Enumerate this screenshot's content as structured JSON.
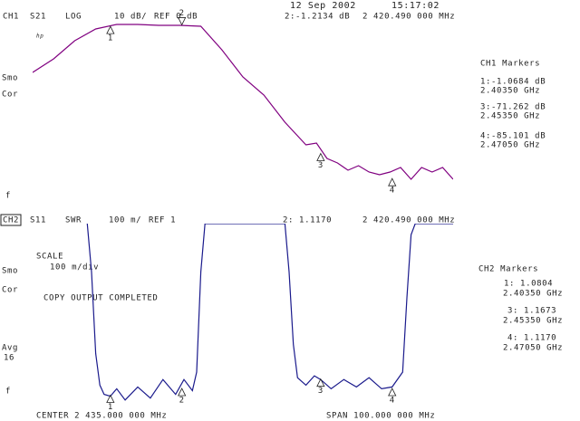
{
  "date": "12 Sep 2002",
  "time": "15:17:02",
  "logo": "hp",
  "chart_data": [
    {
      "type": "line",
      "channel": "CH1",
      "format": "LOG",
      "scale": "10 dB/",
      "reference": "REF 0 dB",
      "side": [
        "Smo",
        "Cor",
        "f"
      ],
      "markers_title": "CH1 Markers",
      "xlim": [
        2385,
        2485
      ],
      "ylim": [
        -100,
        3
      ],
      "x": [
        2385,
        2390,
        2395,
        2400,
        2405,
        2410,
        2415,
        2420,
        2425,
        2430,
        2435,
        2440,
        2445,
        2450,
        2452.5,
        2455,
        2457.5,
        2460,
        2462.5,
        2465,
        2467.5,
        2470,
        2472.5,
        2475,
        2477.5,
        2480,
        2482.5,
        2485
      ],
      "series": [
        {
          "name": "S21",
          "color": "#800080",
          "values": [
            -27,
            -19.5,
            -9.5,
            -3,
            -0.5,
            -0.5,
            -1,
            -1,
            -1.5,
            -14.5,
            -29.5,
            -39.5,
            -54.5,
            -67,
            -66,
            -74.5,
            -77,
            -81,
            -78.5,
            -82,
            -83.5,
            -82,
            -79.5,
            -86,
            -79.5,
            -82,
            -79.5,
            -86
          ]
        }
      ],
      "markers": [
        {
          "label": "1",
          "x": 2403.5,
          "x_label": "2.40350 GHz",
          "value": -1.0684,
          "value_label": "1:-1.0684 dB"
        },
        {
          "label": "2",
          "x": 2420.49,
          "x_label": "2 420.490 000 MHz",
          "value": -1.2134,
          "value_label": "2:-1.2134 dB"
        },
        {
          "label": "3",
          "x": 2453.5,
          "x_label": "2.45350 GHz",
          "value": -71.262,
          "value_label": "3:-71.262 dB"
        },
        {
          "label": "4",
          "x": 2470.5,
          "x_label": "2.47050 GHz",
          "value": -85.101,
          "value_label": "4:-85.101 dB"
        }
      ]
    },
    {
      "type": "line",
      "channel": "CH2",
      "format": "SWR",
      "scale": "100 m/",
      "reference": "REF 1",
      "side": [
        "Smo",
        "Cor",
        "Avg",
        "16",
        "f"
      ],
      "markers_title": "CH2 Markers",
      "annotations": [
        "SCALE",
        "100 m/div",
        "COPY OUTPUT COMPLETED"
      ],
      "center": "CENTER 2 435.000 000 MHz",
      "span": "SPAN 100.000 000 MHz",
      "xlim": [
        2385,
        2485
      ],
      "ylim": [
        1,
        2
      ],
      "x": [
        2398,
        2399,
        2400,
        2401,
        2402,
        2403.5,
        2405,
        2407,
        2410,
        2413,
        2416,
        2419,
        2421,
        2423,
        2424,
        2425,
        2426,
        2445,
        2446,
        2447,
        2448,
        2450,
        2452,
        2453.5,
        2456,
        2459,
        2462,
        2465,
        2468,
        2470.5,
        2473,
        2474,
        2475,
        2476,
        2485
      ],
      "series": [
        {
          "name": "S11",
          "color": "#1a1a8c",
          "values": [
            2.0,
            1.74,
            1.3,
            1.13,
            1.08,
            1.07,
            1.11,
            1.05,
            1.12,
            1.06,
            1.16,
            1.08,
            1.16,
            1.1,
            1.2,
            1.74,
            2.0,
            2.0,
            1.74,
            1.35,
            1.17,
            1.13,
            1.18,
            1.16,
            1.11,
            1.16,
            1.12,
            1.17,
            1.11,
            1.12,
            1.2,
            1.6,
            1.94,
            2.0,
            2.0
          ]
        }
      ],
      "markers": [
        {
          "label": "1",
          "x": 2403.5,
          "x_label": "2.40350 GHz",
          "value": 1.0804,
          "value_label": "1: 1.0804"
        },
        {
          "label": "2",
          "x": 2420.49,
          "x_label": "2 420.490 000 MHz",
          "value": 1.117,
          "value_label": "2: 1.1170"
        },
        {
          "label": "3",
          "x": 2453.5,
          "x_label": "2.45350 GHz",
          "value": 1.1673,
          "value_label": "3: 1.1673"
        },
        {
          "label": "4",
          "x": 2470.5,
          "x_label": "2.47050 GHz",
          "value": 1.117,
          "value_label": "4: 1.1170"
        }
      ]
    }
  ]
}
